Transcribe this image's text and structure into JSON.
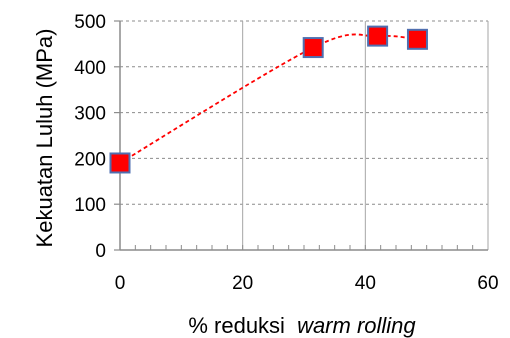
{
  "chart_data": {
    "type": "scatter",
    "xlabel": "% reduksi",
    "xlabel_italic": "warm rolling",
    "ylabel": "Kekuatan Luluh (MPa)",
    "xlim": [
      0,
      60
    ],
    "ylim": [
      0,
      500
    ],
    "x_ticks": [
      "0",
      "20",
      "40",
      "60"
    ],
    "y_ticks": [
      "0",
      "100",
      "200",
      "300",
      "400",
      "500"
    ],
    "x_minor_step": 2.5,
    "grid": true,
    "marker": "square",
    "marker_color": "#ff0000",
    "marker_edge_color": "#4f6fb0",
    "trend_color": "#ff0000",
    "trend_style": "dashed",
    "points": [
      {
        "x": 0,
        "y": 190
      },
      {
        "x": 31.5,
        "y": 442
      },
      {
        "x": 42,
        "y": 467
      },
      {
        "x": 48.5,
        "y": 460
      }
    ]
  }
}
